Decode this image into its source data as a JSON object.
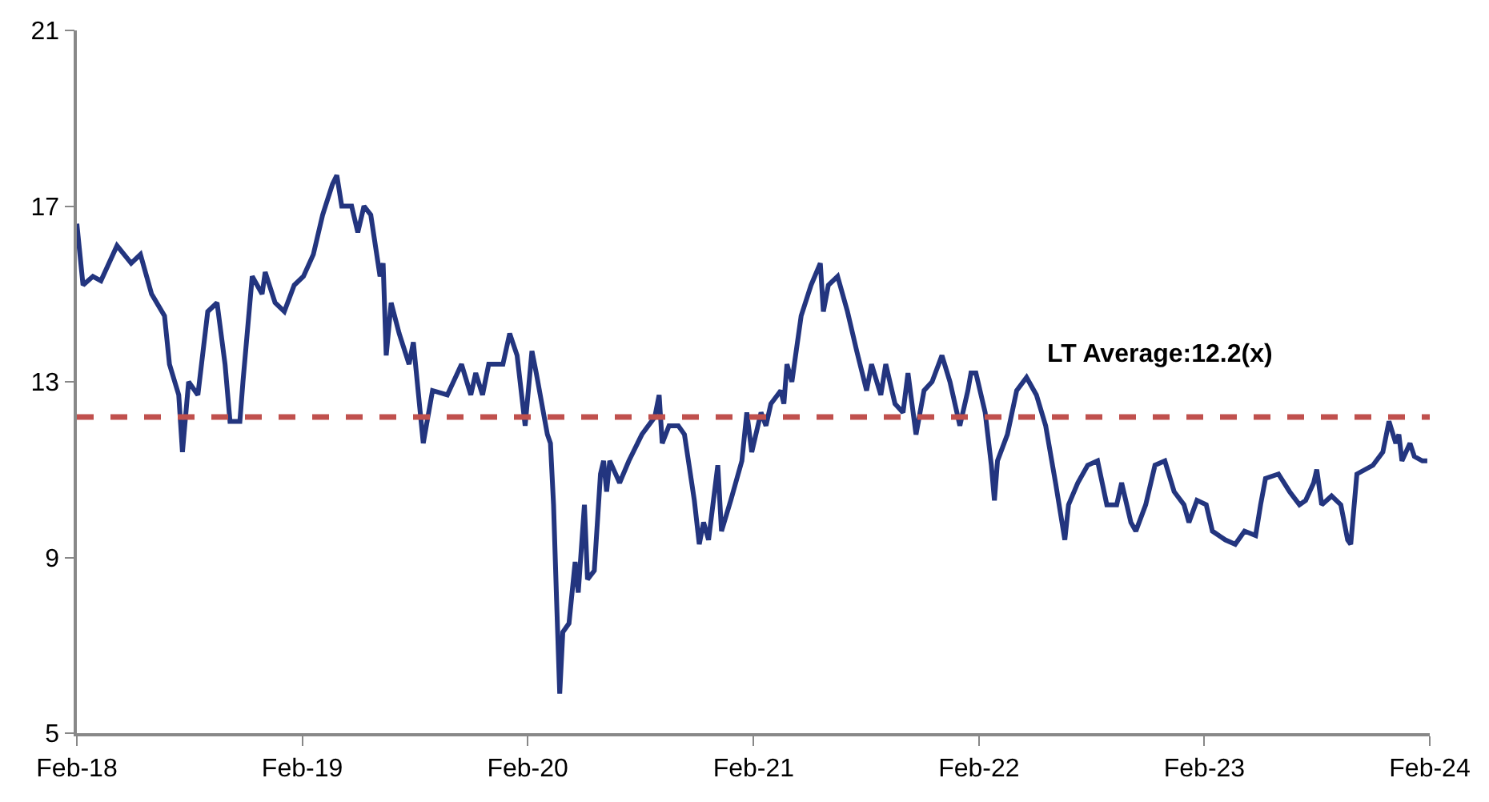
{
  "chart_data": {
    "type": "line",
    "x": [
      "2018-02-01",
      "2018-02-11",
      "2018-02-27",
      "2018-03-12",
      "2018-04-07",
      "2018-04-30",
      "2018-05-15",
      "2018-06-02",
      "2018-06-23",
      "2018-07-01",
      "2018-07-16",
      "2018-07-22",
      "2018-08-01",
      "2018-08-16",
      "2018-09-01",
      "2018-09-16",
      "2018-09-29",
      "2018-10-07",
      "2018-10-23",
      "2018-10-28",
      "2018-11-12",
      "2018-11-28",
      "2018-12-03",
      "2018-12-19",
      "2019-01-03",
      "2019-01-19",
      "2019-02-03",
      "2019-02-19",
      "2019-03-06",
      "2019-03-22",
      "2019-03-29",
      "2019-04-06",
      "2019-04-22",
      "2019-05-02",
      "2019-05-12",
      "2019-05-23",
      "2019-06-07",
      "2019-06-12",
      "2019-06-17",
      "2019-06-25",
      "2019-07-08",
      "2019-07-24",
      "2019-07-31",
      "2019-08-16",
      "2019-08-31",
      "2019-09-24",
      "2019-10-17",
      "2019-11-01",
      "2019-11-09",
      "2019-11-20",
      "2019-11-30",
      "2019-12-23",
      "2020-01-03",
      "2020-01-15",
      "2020-01-28",
      "2020-02-08",
      "2020-02-15",
      "2020-03-04",
      "2020-03-09",
      "2020-03-14",
      "2020-03-19",
      "2020-03-24",
      "2020-03-29",
      "2020-04-08",
      "2020-04-18",
      "2020-04-23",
      "2020-05-03",
      "2020-05-08",
      "2020-05-19",
      "2020-05-29",
      "2020-06-03",
      "2020-06-08",
      "2020-06-13",
      "2020-06-29",
      "2020-07-14",
      "2020-08-04",
      "2020-08-25",
      "2020-09-01",
      "2020-09-06",
      "2020-09-17",
      "2020-10-02",
      "2020-10-12",
      "2020-10-28",
      "2020-11-05",
      "2020-11-12",
      "2020-11-20",
      "2020-12-05",
      "2020-12-11",
      "2020-12-26",
      "2021-01-13",
      "2021-01-21",
      "2021-01-29",
      "2021-02-13",
      "2021-02-21",
      "2021-03-01",
      "2021-03-17",
      "2021-03-22",
      "2021-03-27",
      "2021-04-04",
      "2021-04-19",
      "2021-05-05",
      "2021-05-20",
      "2021-05-25",
      "2021-06-02",
      "2021-06-17",
      "2021-07-03",
      "2021-07-18",
      "2021-08-03",
      "2021-08-11",
      "2021-08-26",
      "2021-09-03",
      "2021-09-18",
      "2021-10-01",
      "2021-10-09",
      "2021-10-22",
      "2021-11-04",
      "2021-11-17",
      "2021-12-03",
      "2021-12-16",
      "2022-01-01",
      "2022-01-14",
      "2022-01-19",
      "2022-01-27",
      "2022-02-11",
      "2022-02-21",
      "2022-02-26",
      "2022-03-03",
      "2022-03-19",
      "2022-04-03",
      "2022-04-19",
      "2022-05-05",
      "2022-05-20",
      "2022-06-05",
      "2022-06-20",
      "2022-06-26",
      "2022-07-11",
      "2022-07-27",
      "2022-08-12",
      "2022-08-27",
      "2022-09-12",
      "2022-09-20",
      "2022-10-05",
      "2022-10-13",
      "2022-10-29",
      "2022-11-13",
      "2022-11-29",
      "2022-12-14",
      "2022-12-30",
      "2023-01-07",
      "2023-01-20",
      "2023-02-04",
      "2023-02-14",
      "2023-03-07",
      "2023-03-23",
      "2023-04-07",
      "2023-04-25",
      "2023-05-03",
      "2023-05-11",
      "2023-06-01",
      "2023-06-19",
      "2023-07-05",
      "2023-07-15",
      "2023-07-28",
      "2023-08-02",
      "2023-08-10",
      "2023-08-26",
      "2023-09-10",
      "2023-09-21",
      "2023-09-26",
      "2023-10-06",
      "2023-11-01",
      "2023-11-17",
      "2023-11-27",
      "2023-12-08",
      "2023-12-13",
      "2023-12-18",
      "2023-12-31",
      "2024-01-07",
      "2024-01-20",
      "2024-01-28"
    ],
    "series": [
      {
        "color": "#23357f",
        "values": [
          16.6,
          15.2,
          15.4,
          15.3,
          16.1,
          15.7,
          15.9,
          15.0,
          14.5,
          13.4,
          12.7,
          11.4,
          13.0,
          12.7,
          14.6,
          14.8,
          13.4,
          12.1,
          12.1,
          13.0,
          15.4,
          15.0,
          15.5,
          14.8,
          14.6,
          15.2,
          15.4,
          15.9,
          16.8,
          17.5,
          17.7,
          17.0,
          17.0,
          16.4,
          17.0,
          16.8,
          15.4,
          15.7,
          13.6,
          14.8,
          14.1,
          13.4,
          13.9,
          11.6,
          12.8,
          12.7,
          13.4,
          12.7,
          13.2,
          12.7,
          13.4,
          13.4,
          14.1,
          13.6,
          12.0,
          13.7,
          13.2,
          11.8,
          11.6,
          10.2,
          8.0,
          5.9,
          7.3,
          7.5,
          8.9,
          8.2,
          10.2,
          8.5,
          8.7,
          10.9,
          11.2,
          10.5,
          11.2,
          10.7,
          11.2,
          11.8,
          12.2,
          12.7,
          11.6,
          12.0,
          12.0,
          11.8,
          10.3,
          9.3,
          9.8,
          9.4,
          11.1,
          9.6,
          10.3,
          11.2,
          12.3,
          11.4,
          12.3,
          12.0,
          12.5,
          12.8,
          12.5,
          13.4,
          13.0,
          14.5,
          15.2,
          15.7,
          14.6,
          15.2,
          15.4,
          14.6,
          13.7,
          12.8,
          13.4,
          12.7,
          13.4,
          12.5,
          12.3,
          13.2,
          11.8,
          12.8,
          13.0,
          13.6,
          13.0,
          12.0,
          12.8,
          13.2,
          13.2,
          12.3,
          11.1,
          10.3,
          11.2,
          11.8,
          12.8,
          13.1,
          12.7,
          12.0,
          10.7,
          9.4,
          10.2,
          10.7,
          11.1,
          11.2,
          10.2,
          10.2,
          10.7,
          9.8,
          9.6,
          10.2,
          11.1,
          11.2,
          10.5,
          10.2,
          9.8,
          10.3,
          10.2,
          9.6,
          9.4,
          9.3,
          9.6,
          9.5,
          10.2,
          10.8,
          10.9,
          10.5,
          10.2,
          10.3,
          10.7,
          11.0,
          10.2,
          10.4,
          10.2,
          9.4,
          9.3,
          10.9,
          11.1,
          11.4,
          12.1,
          11.6,
          11.8,
          11.2,
          11.6,
          11.3,
          11.2,
          11.2
        ]
      }
    ],
    "xlim": [
      "2018-02-01",
      "2024-02-01"
    ],
    "xticks": [
      {
        "value": "2018-02-01",
        "label": "Feb-18"
      },
      {
        "value": "2019-02-01",
        "label": "Feb-19"
      },
      {
        "value": "2020-02-01",
        "label": "Feb-20"
      },
      {
        "value": "2021-02-01",
        "label": "Feb-21"
      },
      {
        "value": "2022-02-01",
        "label": "Feb-22"
      },
      {
        "value": "2023-02-01",
        "label": "Feb-23"
      },
      {
        "value": "2024-02-01",
        "label": "Feb-24"
      }
    ],
    "ylim": [
      5,
      21
    ],
    "yticks": [
      5,
      9,
      13,
      17,
      21
    ],
    "ref_lines": [
      {
        "axis": "y",
        "value": 12.2,
        "label": "LT Average:12.2(x)",
        "color": "#c0504d",
        "line_style": "dashed"
      }
    ],
    "marker": "none",
    "line_style": "solid"
  }
}
